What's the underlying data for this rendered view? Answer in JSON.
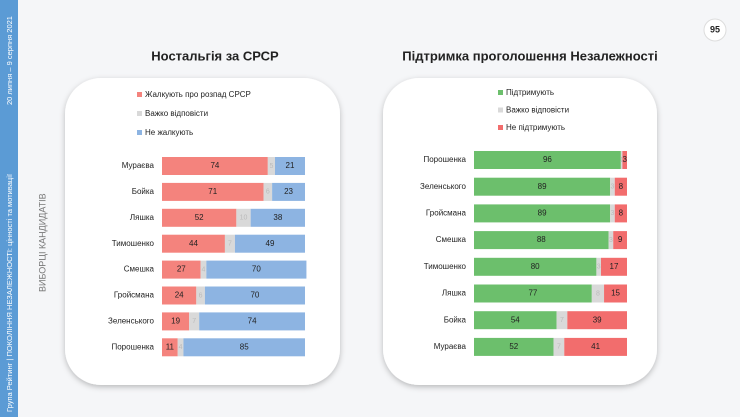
{
  "slide": {
    "date": "20 липня – 9 серпня 2021",
    "footer": "Група Рейтинг | ПОКОЛІННЯ НЕЗАЛЕЖНОСТІ: цінності та мотивації",
    "section": "ВИБОРЦІ КАНДИДАТІВ",
    "page": "95"
  },
  "chart_data": [
    {
      "type": "stacked-bar-horizontal",
      "title": "Ностальгія за СРСР",
      "categories": [
        "Мураєва",
        "Бойка",
        "Ляшка",
        "Тимошенко",
        "Смешка",
        "Гройсмана",
        "Зеленського",
        "Порошенка"
      ],
      "xlim": [
        0,
        100
      ],
      "series": [
        {
          "name": "Жалкують про розпад СРСР",
          "color": "#f4837d",
          "values": [
            74,
            71,
            52,
            44,
            27,
            24,
            19,
            11
          ]
        },
        {
          "name": "Важко відповісти",
          "color": "#d9d9d9",
          "values": [
            5,
            6,
            10,
            7,
            4,
            6,
            7,
            4
          ]
        },
        {
          "name": "Не жалкують",
          "color": "#8db4e2",
          "values": [
            21,
            23,
            38,
            49,
            70,
            70,
            74,
            85
          ]
        }
      ]
    },
    {
      "type": "stacked-bar-horizontal",
      "title": "Підтримка проголошення Незалежності",
      "categories": [
        "Порошенка",
        "Зеленського",
        "Гройсмана",
        "Смешка",
        "Тимошенко",
        "Ляшка",
        "Бойка",
        "Мураєва"
      ],
      "xlim": [
        0,
        100
      ],
      "series": [
        {
          "name": "Підтримують",
          "color": "#6cbf6c",
          "values": [
            96,
            89,
            89,
            88,
            80,
            77,
            54,
            52
          ]
        },
        {
          "name": "Важко відповісти",
          "color": "#d9d9d9",
          "values": [
            1,
            3,
            3,
            3,
            3,
            8,
            7,
            7
          ]
        },
        {
          "name": "Не підтримують",
          "color": "#f26d6d",
          "values": [
            3,
            8,
            8,
            9,
            17,
            15,
            39,
            41
          ]
        }
      ]
    }
  ]
}
